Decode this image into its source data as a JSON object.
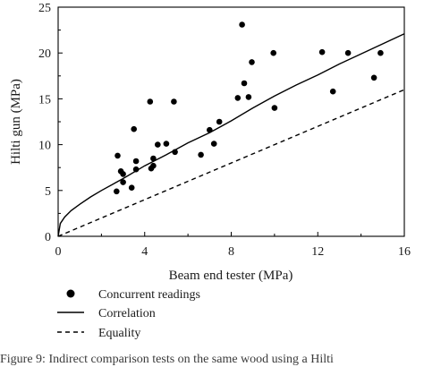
{
  "chart_data": {
    "type": "scatter",
    "xlabel": "Beam end tester (MPa)",
    "ylabel": "Hilti gun (MPa)",
    "xlim": [
      0,
      16
    ],
    "ylim": [
      0,
      25
    ],
    "x_ticks": [
      0,
      4,
      8,
      12,
      16
    ],
    "y_ticks": [
      0,
      5,
      10,
      15,
      20,
      25
    ],
    "x_tick_labels": [
      "0",
      "4",
      "8",
      "12",
      "16"
    ],
    "y_tick_labels": [
      "0",
      "5",
      "10",
      "15",
      "20",
      "25"
    ],
    "grid": false,
    "legend_position": "bottom-left",
    "series": [
      {
        "name": "Concurrent readings",
        "kind": "points",
        "color": "#000000",
        "points": [
          [
            2.7,
            4.9
          ],
          [
            2.75,
            8.8
          ],
          [
            2.9,
            7.1
          ],
          [
            3.0,
            6.8
          ],
          [
            3.0,
            5.9
          ],
          [
            3.4,
            5.3
          ],
          [
            3.5,
            11.7
          ],
          [
            3.6,
            7.3
          ],
          [
            3.6,
            8.2
          ],
          [
            4.25,
            14.7
          ],
          [
            4.3,
            7.4
          ],
          [
            4.4,
            8.5
          ],
          [
            4.4,
            7.7
          ],
          [
            4.6,
            10.0
          ],
          [
            5.0,
            10.1
          ],
          [
            5.4,
            9.2
          ],
          [
            5.35,
            14.7
          ],
          [
            6.6,
            8.9
          ],
          [
            7.0,
            11.6
          ],
          [
            7.2,
            10.1
          ],
          [
            7.45,
            12.5
          ],
          [
            8.3,
            15.1
          ],
          [
            8.5,
            23.1
          ],
          [
            8.6,
            16.7
          ],
          [
            8.8,
            15.2
          ],
          [
            8.95,
            19.0
          ],
          [
            9.95,
            20.0
          ],
          [
            10.0,
            14.0
          ],
          [
            12.2,
            20.1
          ],
          [
            12.7,
            15.8
          ],
          [
            13.4,
            20.0
          ],
          [
            14.6,
            17.3
          ],
          [
            14.9,
            20.0
          ]
        ]
      },
      {
        "name": "Correlation",
        "kind": "line",
        "style": "solid",
        "color": "#000000",
        "points": [
          [
            0,
            0
          ],
          [
            0.1,
            1.4
          ],
          [
            0.3,
            2.1
          ],
          [
            0.6,
            2.8
          ],
          [
            1,
            3.5
          ],
          [
            1.5,
            4.3
          ],
          [
            2,
            5.0
          ],
          [
            3,
            6.3
          ],
          [
            4,
            7.7
          ],
          [
            5,
            8.9
          ],
          [
            6,
            10.2
          ],
          [
            7,
            11.3
          ],
          [
            8,
            12.6
          ],
          [
            9,
            14.0
          ],
          [
            10,
            15.3
          ],
          [
            11,
            16.5
          ],
          [
            12,
            17.6
          ],
          [
            13,
            18.8
          ],
          [
            14,
            19.9
          ],
          [
            15,
            21.0
          ],
          [
            16,
            22.1
          ]
        ]
      },
      {
        "name": "Equality",
        "kind": "line",
        "style": "dashed",
        "color": "#000000",
        "points": [
          [
            0,
            0
          ],
          [
            16,
            16
          ]
        ]
      }
    ]
  },
  "caption": "Figure 9: Indirect comparison tests on the same wood using a Hilti"
}
